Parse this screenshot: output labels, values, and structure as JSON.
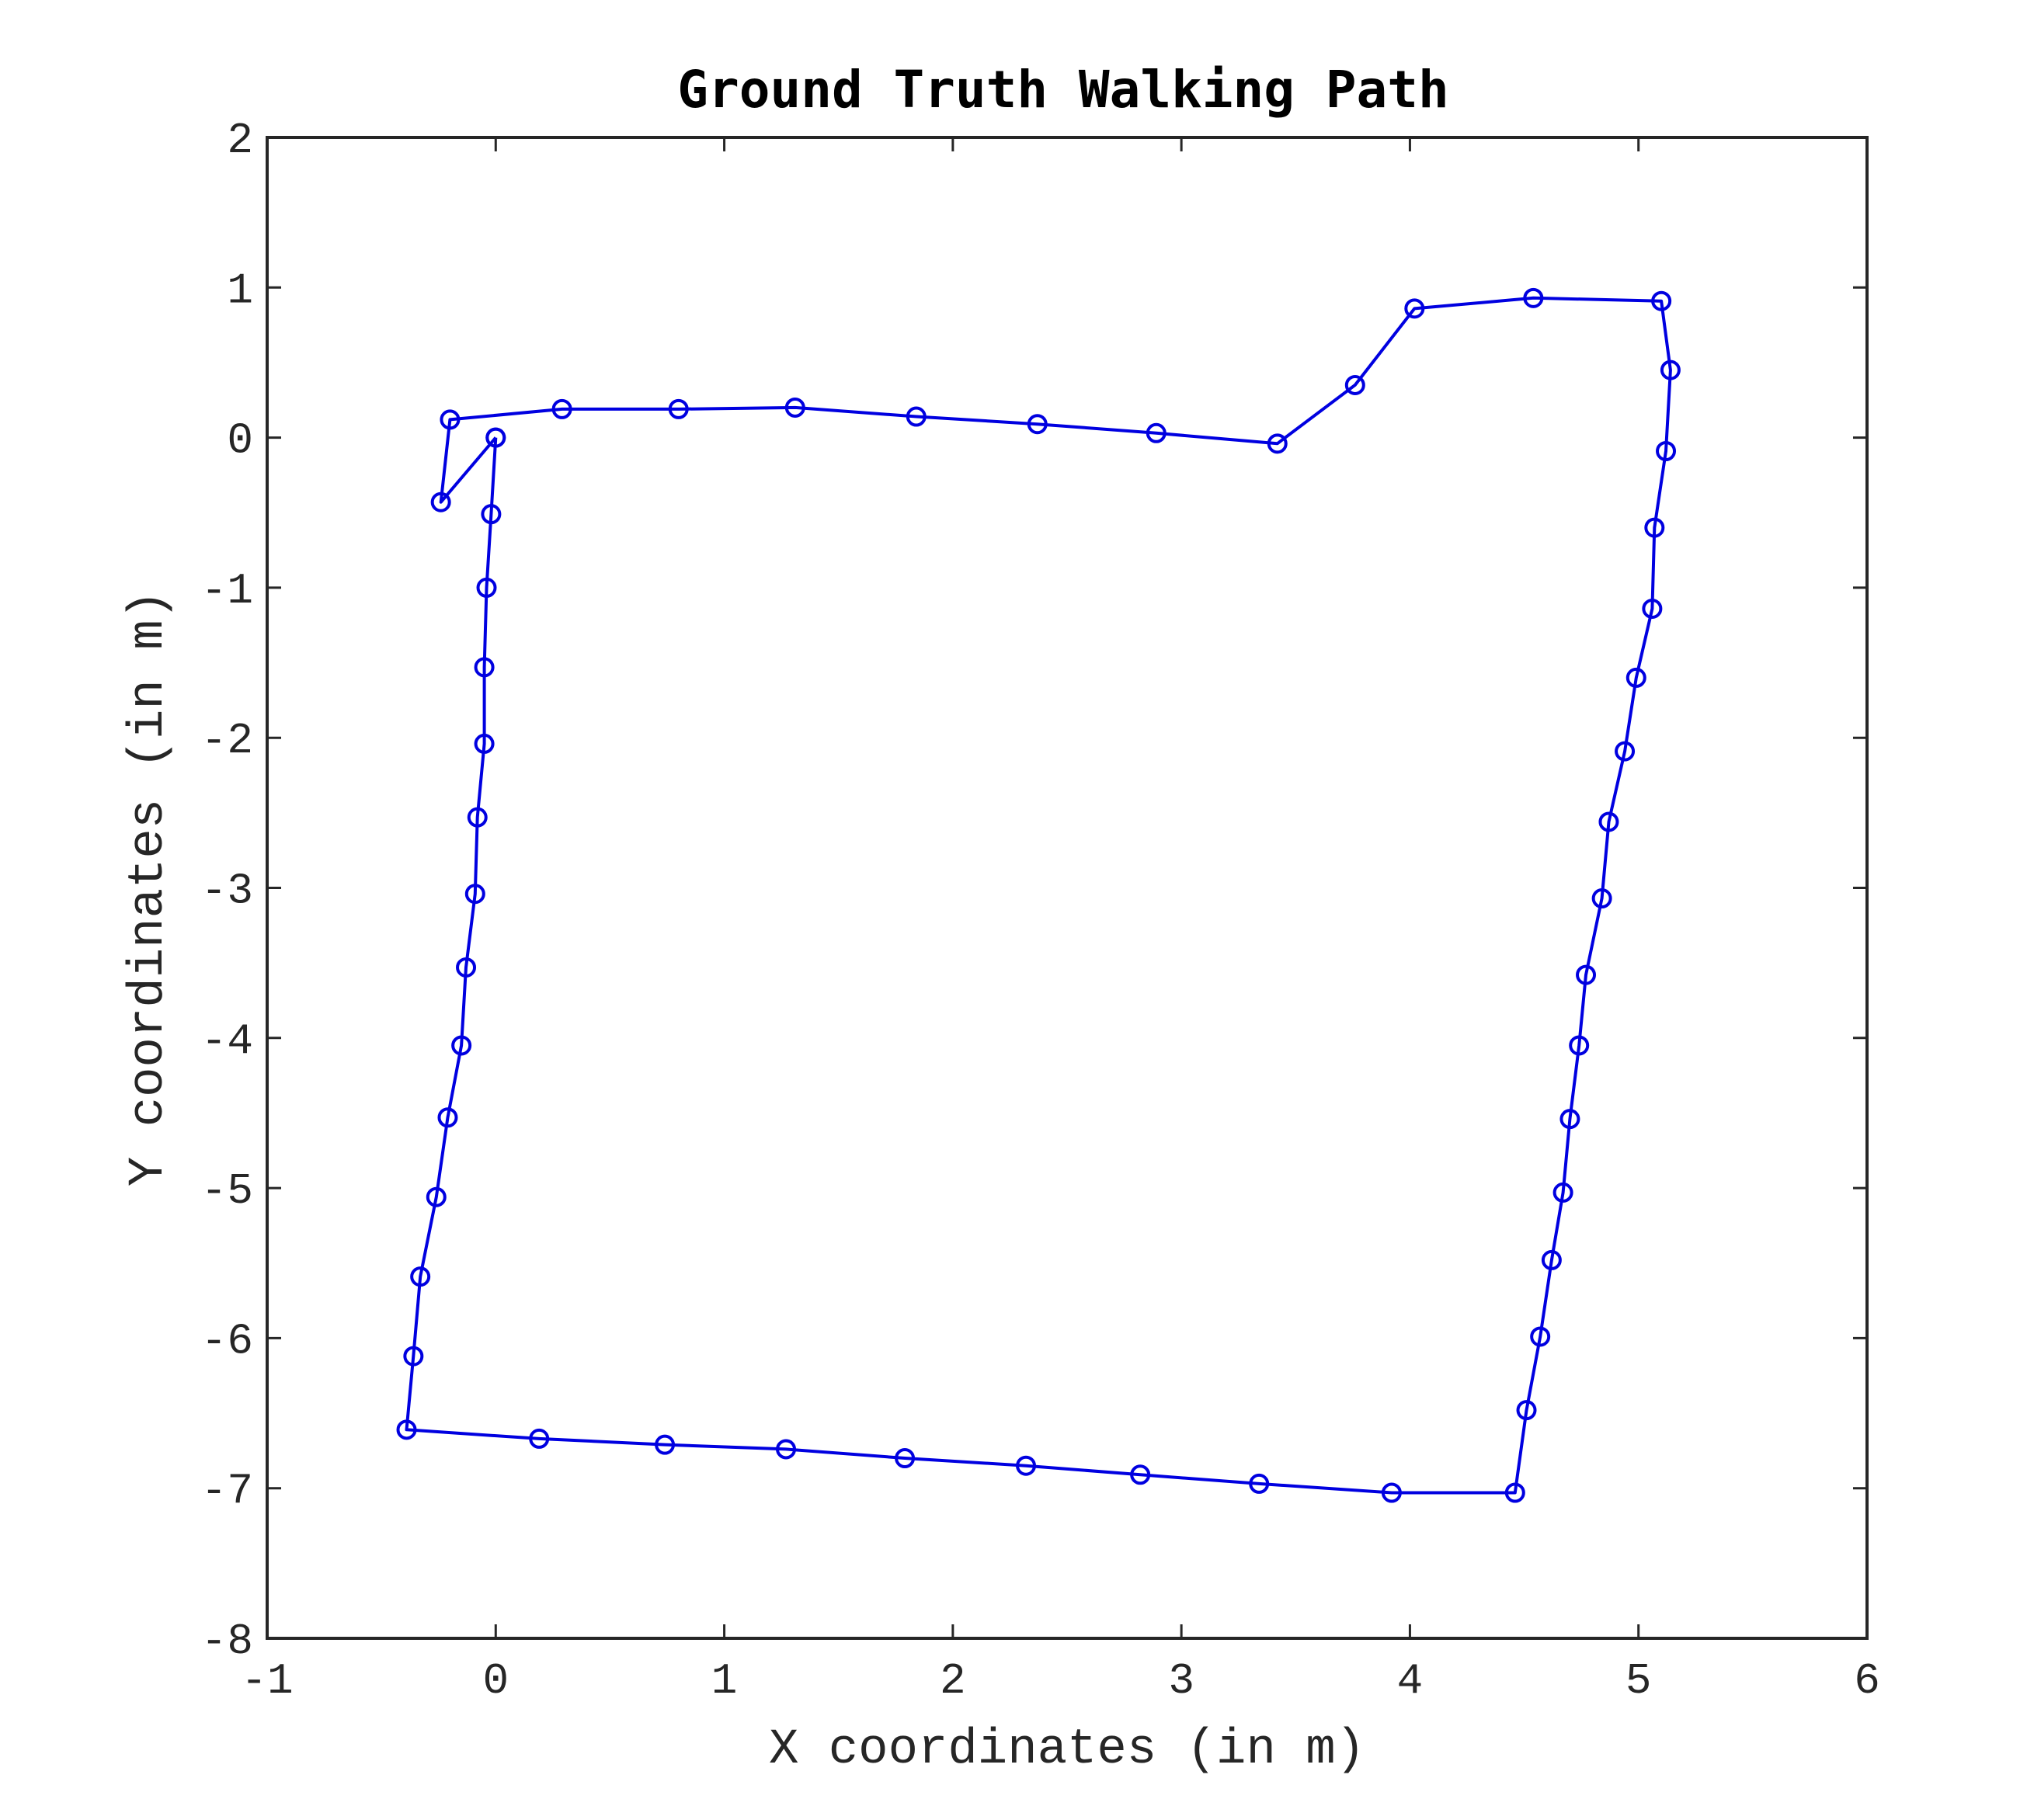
{
  "chart_data": {
    "type": "line",
    "title": "Ground Truth Walking Path",
    "xlabel": "X coordinates (in m)",
    "ylabel": "Y coordinates (in m)",
    "xlim": [
      -1,
      6
    ],
    "ylim": [
      -8,
      2
    ],
    "xticks": [
      "-1",
      "0",
      "1",
      "2",
      "3",
      "4",
      "5",
      "6"
    ],
    "yticks": [
      "2",
      "1",
      "0",
      "-1",
      "-2",
      "-3",
      "-4",
      "-5",
      "-6",
      "-7",
      "-8"
    ],
    "grid": false,
    "marker": "circle",
    "line_color": "#0000e0",
    "series": [
      {
        "x": [
          0.0,
          -0.02,
          -0.04,
          -0.05,
          -0.05,
          -0.08,
          -0.09,
          -0.13,
          -0.15,
          -0.21,
          -0.26,
          -0.33,
          -0.36,
          -0.39,
          0.19,
          0.74,
          1.27,
          1.79,
          2.32,
          2.82,
          3.34,
          3.92,
          4.46,
          4.51,
          4.57,
          4.62,
          4.67,
          4.7,
          4.74,
          4.77,
          4.84,
          4.87,
          4.94,
          4.99,
          5.06,
          5.07,
          5.12,
          5.14,
          5.1,
          4.54,
          4.02,
          3.76,
          3.42,
          2.89,
          2.37,
          1.84,
          1.31,
          0.8,
          0.29,
          -0.2,
          -0.24,
          0.0
        ],
        "y": [
          0.0,
          -0.51,
          -1.0,
          -1.53,
          -2.04,
          -2.53,
          -3.04,
          -3.53,
          -4.05,
          -4.53,
          -5.06,
          -5.59,
          -6.12,
          -6.61,
          -6.67,
          -6.71,
          -6.74,
          -6.8,
          -6.85,
          -6.91,
          -6.97,
          -7.03,
          -7.03,
          -6.48,
          -5.99,
          -5.48,
          -5.03,
          -4.54,
          -4.05,
          -3.58,
          -3.07,
          -2.56,
          -2.09,
          -1.6,
          -1.14,
          -0.6,
          -0.09,
          0.45,
          0.91,
          0.93,
          0.86,
          0.35,
          -0.04,
          0.03,
          0.09,
          0.14,
          0.2,
          0.19,
          0.19,
          0.12,
          -0.43,
          0.0
        ]
      }
    ]
  }
}
